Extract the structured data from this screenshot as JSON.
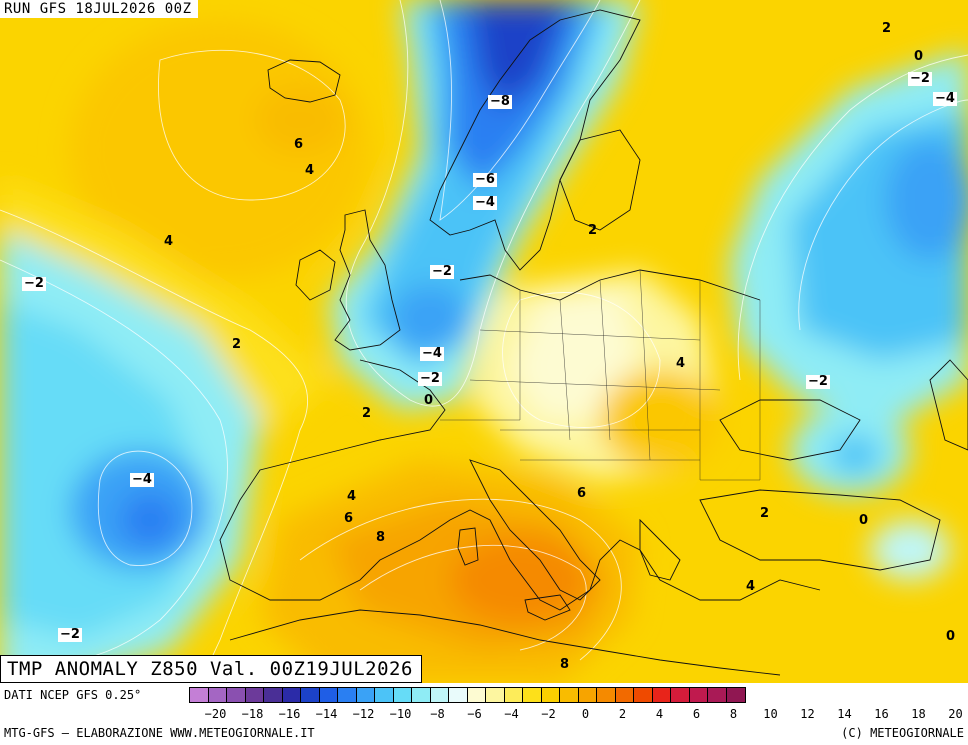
{
  "header": {
    "run": "RUN GFS 18JUL2026 00Z"
  },
  "title": "TMP ANOMALY Z850 Val. 00Z19JUL2026",
  "footer": {
    "data_source": "DATI NCEP GFS 0.25°",
    "credit_left": "MTG-GFS – ELABORAZIONE WWW.METEOGIORNALE.IT",
    "credit_right": "(C) METEOGIORNALE"
  },
  "scale": {
    "colors": [
      "#c47fd6",
      "#a466c3",
      "#8a50b0",
      "#6c3a9a",
      "#4a2f96",
      "#2b2ba8",
      "#1c42c8",
      "#1f5ee6",
      "#2a7ff2",
      "#3aa2f6",
      "#4cc3f7",
      "#66dcf7",
      "#8fecf5",
      "#bff6f8",
      "#e9fbfb",
      "#fdfbd2",
      "#fdf6a0",
      "#fdec5a",
      "#fde01a",
      "#fbd000",
      "#f9bc00",
      "#f7a400",
      "#f58a00",
      "#f26a00",
      "#ef4a00",
      "#e8241a",
      "#d41c3a",
      "#c01a4e",
      "#a91a56",
      "#901752"
    ],
    "ticks": [
      "−20",
      "−18",
      "−16",
      "−14",
      "−12",
      "−10",
      "−8",
      "−6",
      "−4",
      "−2",
      "0",
      "2",
      "4",
      "6",
      "8",
      "10",
      "12",
      "14",
      "16",
      "18",
      "20"
    ]
  },
  "contour_labels": [
    {
      "text": "2"
    },
    {
      "text": "0"
    },
    {
      "text": "−2"
    },
    {
      "text": "−4"
    },
    {
      "text": "−8"
    },
    {
      "text": "6"
    },
    {
      "text": "4"
    },
    {
      "text": "−6"
    },
    {
      "text": "−4"
    },
    {
      "text": "2"
    },
    {
      "text": "4"
    },
    {
      "text": "−2"
    },
    {
      "text": "−2"
    },
    {
      "text": "2"
    },
    {
      "text": "−4"
    },
    {
      "text": "−2"
    },
    {
      "text": "0"
    },
    {
      "text": "4"
    },
    {
      "text": "−2"
    },
    {
      "text": "2"
    },
    {
      "text": "−4"
    },
    {
      "text": "4"
    },
    {
      "text": "6"
    },
    {
      "text": "6"
    },
    {
      "text": "8"
    },
    {
      "text": "2"
    },
    {
      "text": "0"
    },
    {
      "text": "4"
    },
    {
      "text": "−2"
    },
    {
      "text": "0"
    },
    {
      "text": "8"
    }
  ]
}
